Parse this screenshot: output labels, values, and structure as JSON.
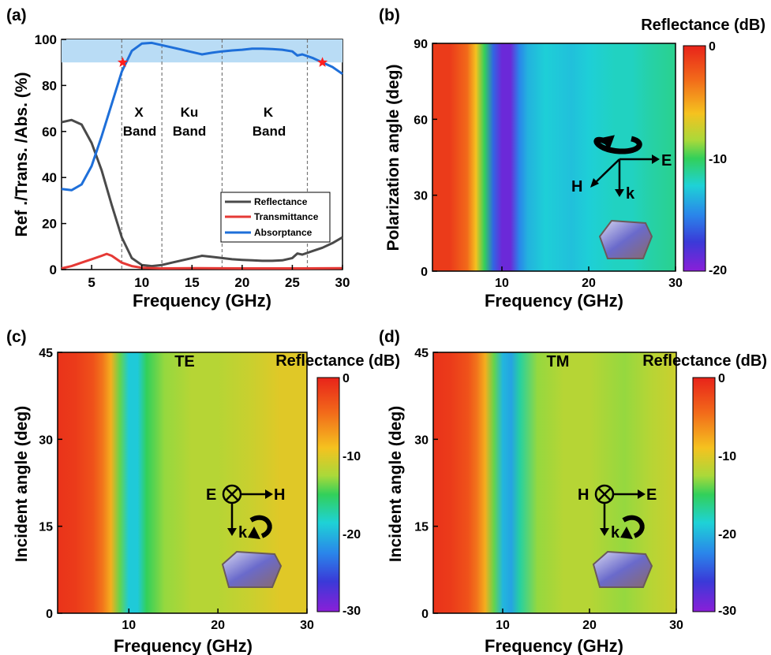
{
  "panels": {
    "a": {
      "letter": "(a)",
      "chart_data": {
        "type": "line",
        "xlabel": "Frequency (GHz)",
        "ylabel": "Ref ./Trans. /Abs. (%)",
        "xlim": [
          2,
          30
        ],
        "ylim": [
          0,
          100
        ],
        "xticks": [
          "5",
          "10",
          "15",
          "20",
          "25",
          "30"
        ],
        "yticks": [
          "0",
          "20",
          "40",
          "60",
          "80",
          "100"
        ],
        "band_labels": [
          {
            "line1": "X",
            "line2": "Band",
            "x": 10
          },
          {
            "line1": "Ku",
            "line2": "Band",
            "x": 15
          },
          {
            "line1": "K",
            "line2": "Band",
            "x": 22
          }
        ],
        "band_boundaries": [
          8,
          12,
          18,
          26.5
        ],
        "shaded_range": [
          90,
          100
        ],
        "markers": [
          {
            "x": 8.1,
            "y": 90
          },
          {
            "x": 28,
            "y": 90
          }
        ],
        "series": [
          {
            "name": "Reflectance",
            "color": "#4a4a4a",
            "x": [
              2,
              3,
              4,
              5,
              6,
              7,
              8,
              9,
              10,
              11,
              12,
              13,
              14,
              15,
              16,
              17,
              18,
              19,
              20,
              21,
              22,
              23,
              24,
              25,
              25.5,
              26,
              27,
              28,
              29,
              30
            ],
            "y": [
              64,
              65,
              63,
              55,
              43,
              28,
              14,
              5,
              2,
              1.5,
              2,
              3,
              4,
              5,
              6,
              5.5,
              5,
              4.5,
              4.2,
              4,
              3.8,
              3.8,
              4,
              5,
              7,
              6.5,
              8,
              9.5,
              11.5,
              14
            ]
          },
          {
            "name": "Transmittance",
            "color": "#e53935",
            "x": [
              2,
              3,
              4,
              5,
              6,
              6.5,
              7,
              8,
              9,
              10,
              12,
              15,
              20,
              25,
              30
            ],
            "y": [
              0.5,
              1.5,
              3,
              4.5,
              6,
              6.8,
              6,
              3,
              1.5,
              0.8,
              0.5,
              0.6,
              0.5,
              0.5,
              0.6
            ]
          },
          {
            "name": "Absorptance",
            "color": "#1e6fd9",
            "x": [
              2,
              3,
              4,
              5,
              6,
              7,
              8,
              9,
              10,
              11,
              12,
              13,
              14,
              15,
              16,
              17,
              18,
              19,
              20,
              21,
              22,
              23,
              24,
              25,
              25.5,
              26,
              27,
              28,
              29,
              30
            ],
            "y": [
              35,
              34.5,
              37,
              45,
              58,
              72,
              86,
              95,
              98.2,
              98.5,
              97.5,
              96.5,
              95.5,
              94.5,
              93.5,
              94.2,
              94.8,
              95.2,
              95.5,
              96,
              96,
              95.8,
              95.5,
              94.8,
              93,
              93.5,
              92,
              90,
              88,
              85
            ]
          }
        ]
      }
    },
    "b": {
      "letter": "(b)",
      "colorbar_title": "Reflectance (dB)",
      "colorbar_ticks": [
        "0",
        "-10",
        "-20"
      ],
      "chart_data": {
        "type": "heatmap",
        "xlabel": "Frequency (GHz)",
        "ylabel": "Polarization angle (deg)",
        "xlim": [
          2,
          30
        ],
        "ylim": [
          0,
          90
        ],
        "xticks": [
          "10",
          "20",
          "30"
        ],
        "yticks": [
          "0",
          "30",
          "60",
          "90"
        ],
        "zlim": [
          -20,
          0
        ],
        "z_vs_frequency": {
          "x": [
            2,
            4,
            6,
            7,
            8,
            9,
            10,
            11,
            12,
            13,
            15,
            18,
            20,
            23,
            25,
            27,
            30
          ],
          "z": [
            -1,
            -1,
            -3,
            -6,
            -10,
            -16,
            -19,
            -19,
            -15,
            -13.5,
            -12.5,
            -13,
            -12.5,
            -12,
            -12,
            -11.5,
            -11
          ]
        },
        "legend_labels": [
          "E",
          "H",
          "k"
        ]
      }
    },
    "c": {
      "letter": "(c)",
      "mode": "TE",
      "colorbar_title": "Reflectance (dB)",
      "colorbar_ticks": [
        "0",
        "-10",
        "-20",
        "-30"
      ],
      "chart_data": {
        "type": "heatmap",
        "xlabel": "Frequency (GHz)",
        "ylabel": "Incident angle (deg)",
        "xlim": [
          2,
          30
        ],
        "ylim": [
          0,
          45
        ],
        "xticks": [
          "10",
          "20",
          "30"
        ],
        "yticks": [
          "0",
          "15",
          "30",
          "45"
        ],
        "zlim": [
          -30,
          0
        ],
        "z_vs_frequency": {
          "x": [
            2,
            4,
            6,
            7,
            8,
            9,
            10,
            11,
            12,
            14,
            17,
            20,
            24,
            27,
            30
          ],
          "z": [
            -1,
            -1.5,
            -3,
            -5,
            -8,
            -14,
            -19,
            -19,
            -15,
            -13,
            -12,
            -12,
            -11,
            -10,
            -10
          ]
        },
        "legend_labels": [
          "E",
          "H",
          "k"
        ]
      }
    },
    "d": {
      "letter": "(d)",
      "mode": "TM",
      "colorbar_title": "Reflectance (dB)",
      "colorbar_ticks": [
        "0",
        "-10",
        "-20",
        "-30"
      ],
      "chart_data": {
        "type": "heatmap",
        "xlabel": "Frequency (GHz)",
        "ylabel": "Incident angle (deg)",
        "xlim": [
          2,
          30
        ],
        "ylim": [
          0,
          45
        ],
        "xticks": [
          "10",
          "20",
          "30"
        ],
        "yticks": [
          "0",
          "15",
          "30",
          "45"
        ],
        "zlim": [
          -30,
          0
        ],
        "z_vs_frequency": {
          "x": [
            2,
            4,
            6,
            7,
            8,
            9,
            10,
            11,
            12,
            14,
            17,
            20,
            24,
            27,
            30
          ],
          "z": [
            -1,
            -1.5,
            -3,
            -5,
            -8,
            -14,
            -20,
            -21,
            -17,
            -13,
            -12,
            -12,
            -13,
            -12,
            -11
          ]
        },
        "legend_labels": [
          "H",
          "E",
          "k"
        ]
      }
    }
  }
}
